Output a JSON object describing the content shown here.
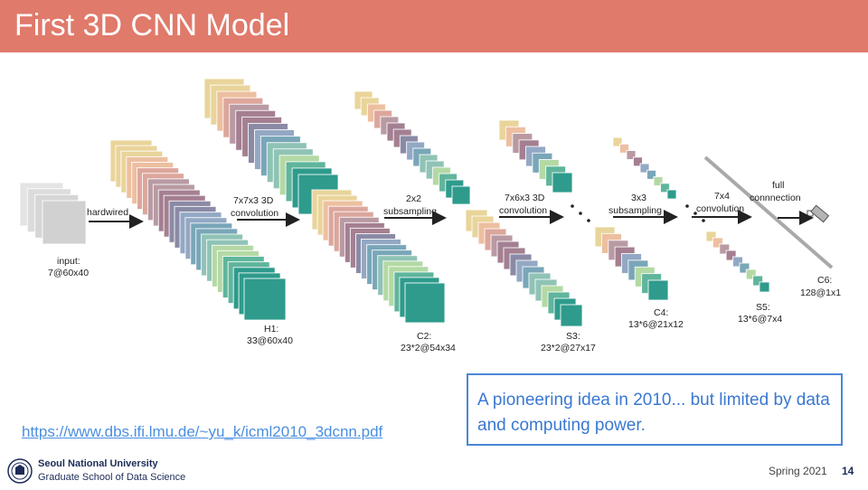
{
  "slide": {
    "title": "First 3D CNN Model",
    "link_text": "https://www.dbs.ifi.lmu.de/~yu_k/icml2010_3dcnn.pdf",
    "callout": "A pioneering idea in 2010... but limited by data and computing power.",
    "accent_color": "#e07a6b",
    "callout_color": "#3a78d0"
  },
  "diagram": {
    "feature_colors": [
      "#e9d49a",
      "#edbfa0",
      "#dca69c",
      "#b99aa3",
      "#a47f91",
      "#8b8aa6",
      "#93a8c4",
      "#79a6b8",
      "#8fc3b5",
      "#b3d9a4",
      "#5fb59c",
      "#2e9b8c"
    ],
    "layers": {
      "input": {
        "name": "input:",
        "shape": "7@60x40"
      },
      "h1": {
        "name": "H1:",
        "shape": "33@60x40"
      },
      "c2": {
        "name": "C2:",
        "shape": "23*2@54x34"
      },
      "s3": {
        "name": "S3:",
        "shape": "23*2@27x17"
      },
      "c4": {
        "name": "C4:",
        "shape": "13*6@21x12"
      },
      "s5": {
        "name": "S5:",
        "shape": "13*6@7x4"
      },
      "c6": {
        "name": "C6:",
        "shape": "128@1x1"
      }
    },
    "operations": {
      "op1": "hardwired",
      "op2_line1": "7x7x3 3D",
      "op2_line2": "convolution",
      "op3_line1": "2x2",
      "op3_line2": "subsampling",
      "op4_line1": "7x6x3 3D",
      "op4_line2": "convolution",
      "op5_line1": "3x3",
      "op5_line2": "subsampling",
      "op6_line1": "7x4",
      "op6_line2": "convolution",
      "op7_line1": "full",
      "op7_line2": "connnection"
    }
  },
  "footer": {
    "university": "Seoul National University",
    "school": "Graduate School of Data Science",
    "term": "Spring 2021",
    "page": "14"
  }
}
